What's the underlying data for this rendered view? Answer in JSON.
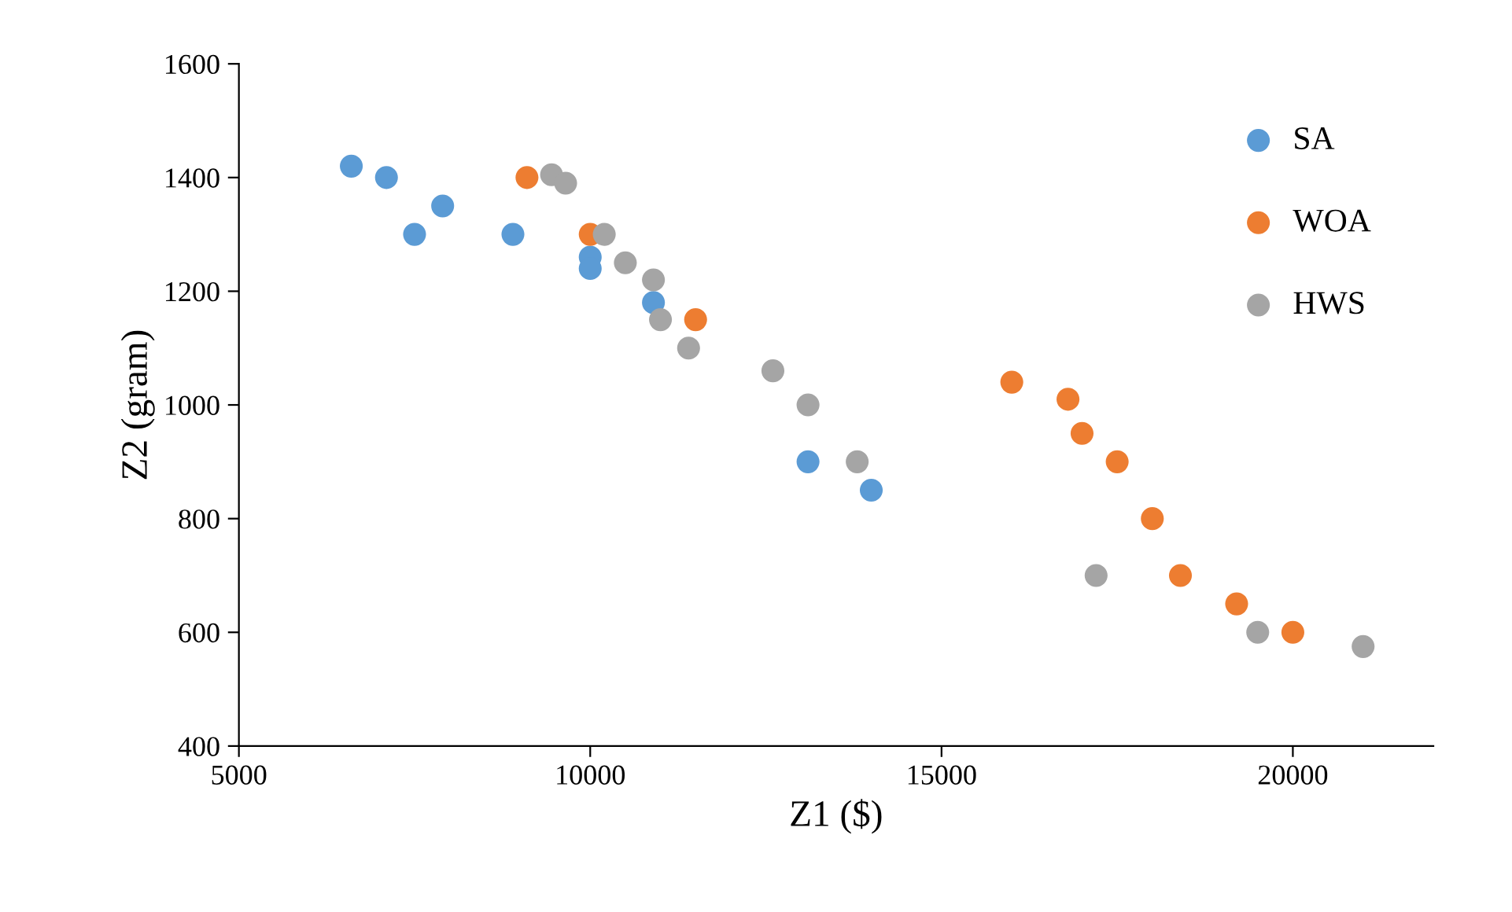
{
  "chart_data": {
    "type": "scatter",
    "xlabel": "Z1 ($)",
    "ylabel": "Z2 (gram)",
    "xlim": [
      5000,
      22000
    ],
    "xticks": [
      5000,
      10000,
      15000,
      20000
    ],
    "ylim": [
      400,
      1600
    ],
    "yticks": [
      400,
      600,
      800,
      1000,
      1200,
      1400,
      1600
    ],
    "grid": false,
    "legend": "top right",
    "marker": "circle",
    "series": [
      {
        "name": "SA",
        "color": "#5b9bd5",
        "x": [
          6600,
          7100,
          7900,
          7500,
          8900,
          10000,
          10000,
          10900,
          13100,
          14000
        ],
        "values": [
          1420,
          1400,
          1350,
          1300,
          1300,
          1260,
          1240,
          1180,
          900,
          850
        ]
      },
      {
        "name": "WOA",
        "color": "#ed7d31",
        "x": [
          9100,
          10000,
          11500,
          16000,
          16800,
          17000,
          17500,
          18000,
          18400,
          19200,
          20000
        ],
        "values": [
          1400,
          1300,
          1150,
          1040,
          1010,
          950,
          900,
          800,
          700,
          650,
          600
        ]
      },
      {
        "name": "HWS",
        "color": "#a5a5a5",
        "x": [
          9450,
          9650,
          10200,
          10500,
          10900,
          11000,
          11400,
          12600,
          13100,
          13800,
          17200,
          19500,
          21000
        ],
        "values": [
          1405,
          1390,
          1300,
          1250,
          1220,
          1150,
          1100,
          1060,
          1000,
          900,
          700,
          600,
          575
        ]
      }
    ]
  }
}
